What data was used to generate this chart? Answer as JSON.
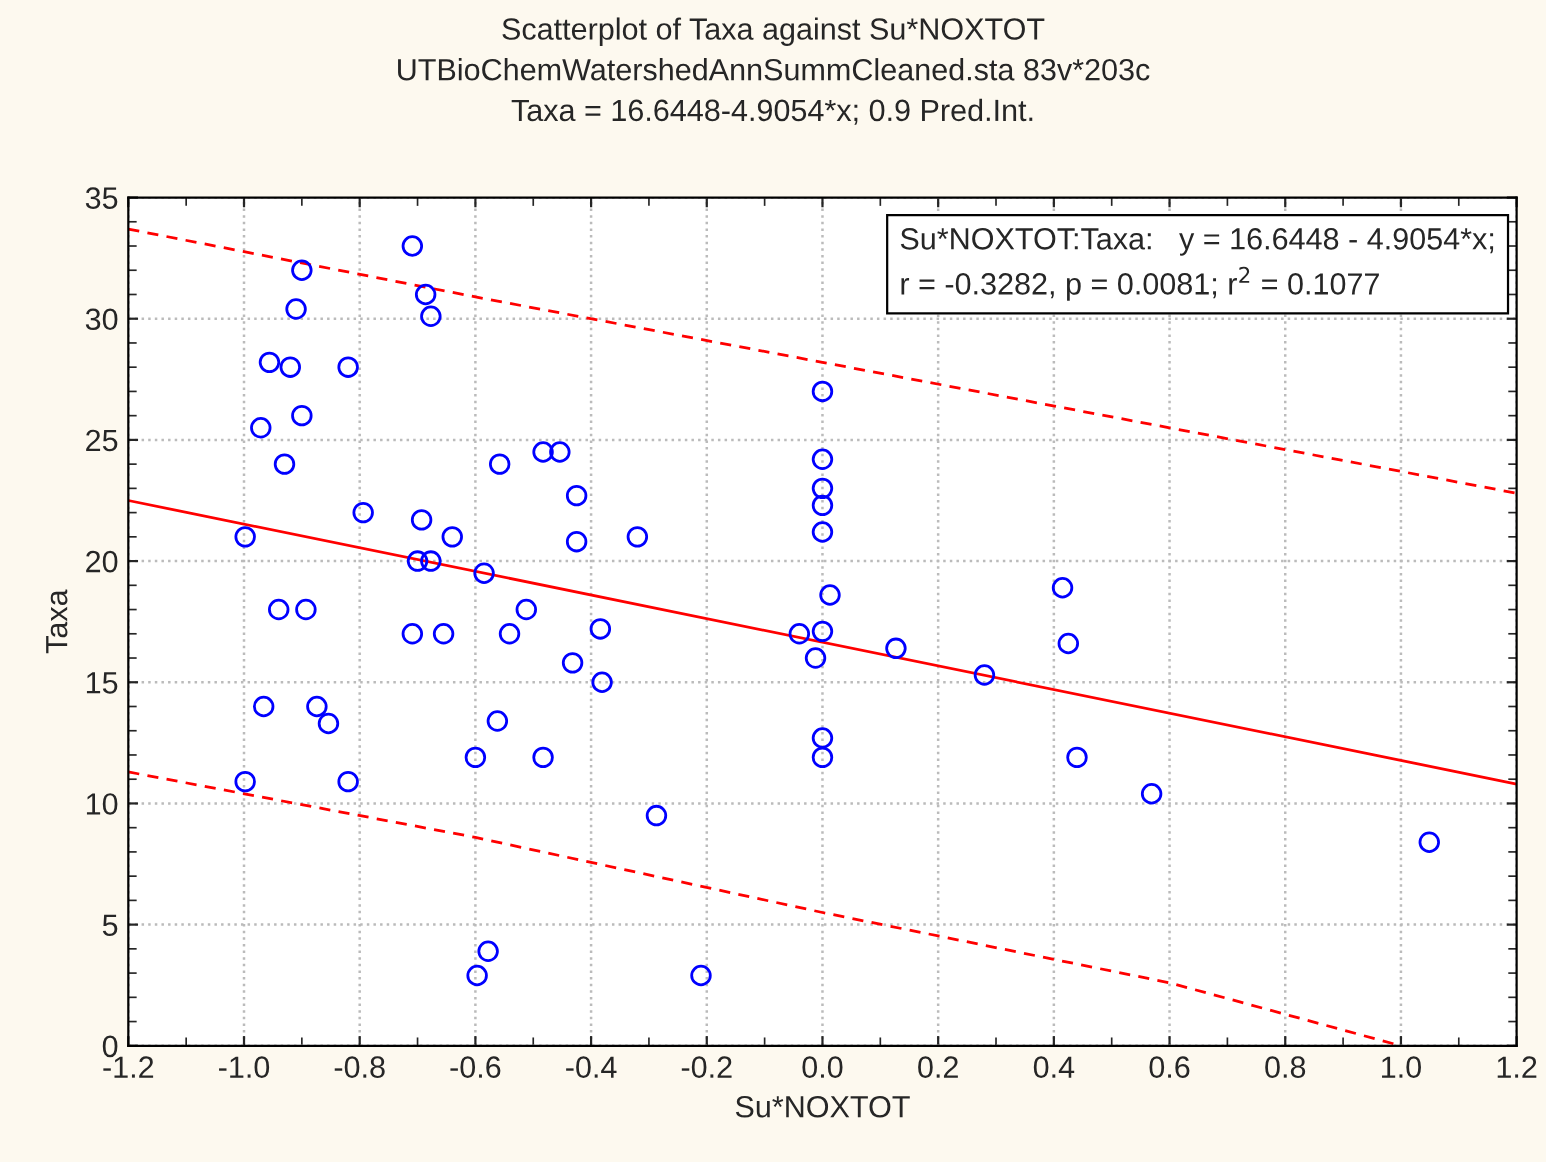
{
  "chart_data": {
    "type": "scatter",
    "title": "Scatterplot of Taxa against Su*NOXTOT",
    "subtitle": "UTBioChemWatershedAnnSummCleaned.sta 83v*203c\nTaxa = 16.6448-4.9054*x; 0.9 Pred.Int.",
    "xlabel": "Su*NOXTOT",
    "ylabel": "Taxa",
    "xlim": [
      -1.2,
      1.2
    ],
    "ylim": [
      0,
      35
    ],
    "xticks": [
      -1.2,
      {
        "value": -1,
        "label": "-1.0"
      },
      -0.8,
      -0.6,
      -0.4,
      -0.2,
      {
        "value": 0,
        "label": "0.0"
      },
      0.2,
      0.4,
      0.6,
      0.8,
      {
        "value": 1,
        "label": "1.0"
      },
      1.2
    ],
    "yticks": [
      0,
      5,
      10,
      15,
      20,
      25,
      30,
      35
    ],
    "grid": true,
    "legend": false,
    "annotations": [
      "Su*NOXTOT:Taxa:   y = 16.6448 - 4.9054*x;\nr = -0.3282, p = 0.0081; r$^{2}$ = 0.1077"
    ],
    "series": [
      {
        "color": "#0000ff",
        "marker": "circle",
        "x": [
          -0.709,
          -0.9,
          -0.686,
          -0.677,
          -0.91,
          -0.956,
          -0.92,
          -0.82,
          -0.971,
          -0.9,
          -0.93,
          -0.558,
          -0.483,
          -0.454,
          -0.425,
          -0.425,
          -0.794,
          -0.693,
          -0.64,
          -0.998,
          -0.7,
          -0.677,
          -0.585,
          -0.94,
          -0.893,
          -0.512,
          -0.709,
          -0.655,
          -0.541,
          -0.384,
          -0.432,
          -0.381,
          -0.966,
          -0.874,
          -0.854,
          -0.562,
          -0.6,
          -0.483,
          -0.998,
          -0.82,
          -0.578,
          -0.597,
          -0.32,
          -0.287,
          -0.21,
          0.0,
          0.0,
          0.0,
          0.0,
          0.0,
          0.013,
          -0.04,
          0.0,
          -0.012,
          0.0,
          0.0,
          0.127,
          0.28,
          0.415,
          0.425,
          0.44,
          0.569,
          1.049
        ],
        "values": [
          33.0,
          32.0,
          31.0,
          30.1,
          30.4,
          28.2,
          28.0,
          28.0,
          25.5,
          26.0,
          24.0,
          24.0,
          24.5,
          24.5,
          22.7,
          20.8,
          22.0,
          21.7,
          21.0,
          21.0,
          20.0,
          20.0,
          19.5,
          18.0,
          18.0,
          18.0,
          17.0,
          17.0,
          17.0,
          17.2,
          15.8,
          15.0,
          14.0,
          14.0,
          13.3,
          13.4,
          11.9,
          11.9,
          10.9,
          10.9,
          3.9,
          2.9,
          21.0,
          9.5,
          2.9,
          27.0,
          24.2,
          23.0,
          22.3,
          21.2,
          18.6,
          17.0,
          17.1,
          16.0,
          12.7,
          11.9,
          16.4,
          15.3,
          18.9,
          16.6,
          11.9,
          10.4,
          8.4
        ]
      },
      {
        "type": "line",
        "color": "#ff0000",
        "line_style": "solid",
        "x": [
          -1.2,
          1.2
        ],
        "values": [
          22.5,
          10.8
        ]
      },
      {
        "type": "line",
        "color": "#ff0000",
        "line_style": "dashed",
        "x": [
          -1.2,
          -0.6,
          0.0,
          0.6,
          1.2
        ],
        "values": [
          33.7,
          30.9,
          28.2,
          25.5,
          22.8
        ]
      },
      {
        "type": "line",
        "color": "#ff0000",
        "line_style": "dashed",
        "x": [
          -1.2,
          -0.6,
          0.0,
          0.6,
          1.0
        ],
        "values": [
          11.3,
          8.6,
          5.5,
          2.6,
          0.0
        ]
      }
    ]
  }
}
